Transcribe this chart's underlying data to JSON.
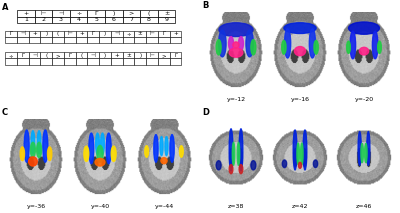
{
  "panel_labels": [
    "A",
    "B",
    "C",
    "D"
  ],
  "key_symbols": [
    "+",
    "⊢",
    "⊣",
    "÷",
    "Γ",
    ")",
    ">",
    "(",
    "±"
  ],
  "key_numbers": [
    "1",
    "2",
    "3",
    "4",
    "5",
    "6",
    "7",
    "8",
    "9"
  ],
  "row2_symbols": [
    "Γ",
    "⊣",
    "+",
    ")",
    "(",
    "⊢",
    "+",
    "Γ",
    ")",
    "⊣",
    "÷",
    "±",
    "⊢",
    "Γ",
    "+"
  ],
  "row3_symbols": [
    "÷",
    "Γ",
    "⊣",
    "(",
    ">",
    "Γ",
    "(",
    "⊣",
    ")",
    "+",
    "±",
    ")",
    "⊢",
    ">",
    "Γ"
  ],
  "brain_B_labels": [
    "y=-12",
    "y=-16",
    "y=-20"
  ],
  "brain_C_labels": [
    "y=-36",
    "y=-40",
    "y=-44"
  ],
  "brain_D_labels": [
    "z=38",
    "z=42",
    "z=46"
  ],
  "fig_bg": "#ffffff"
}
